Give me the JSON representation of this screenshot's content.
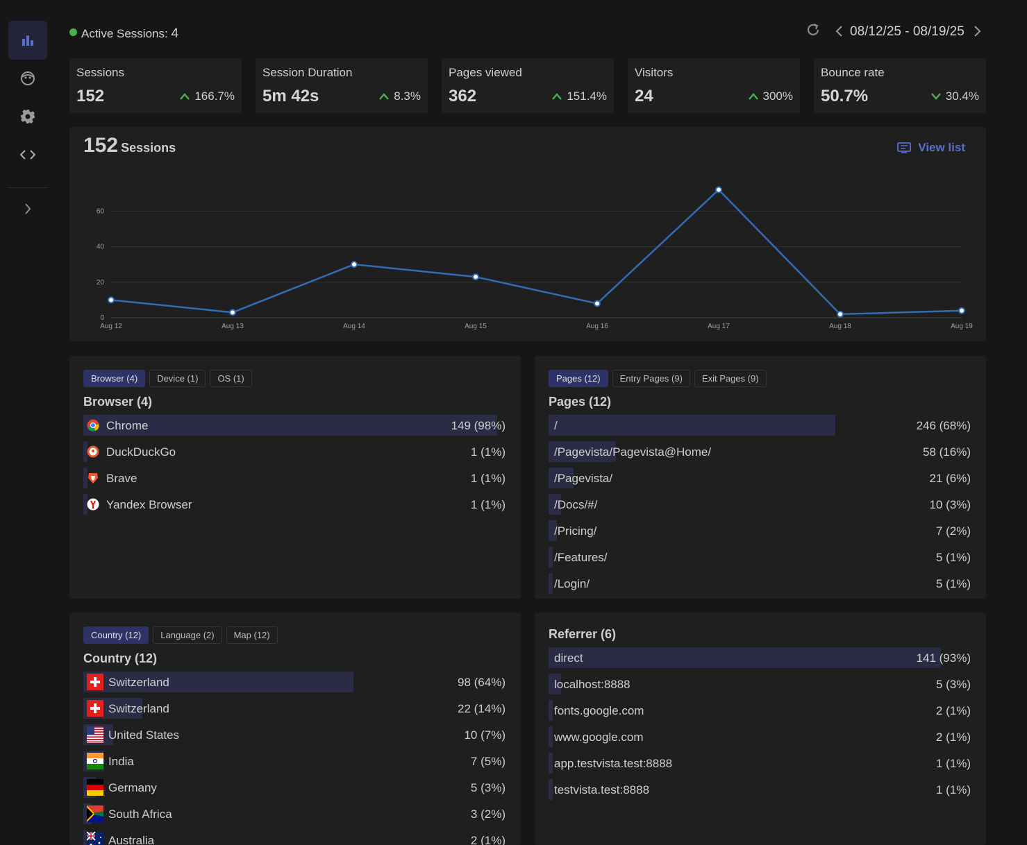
{
  "active_sessions": {
    "label": "Active Sessions:",
    "count": "4"
  },
  "date_range": "08/12/25 - 08/19/25",
  "stats": [
    {
      "title": "Sessions",
      "value": "152",
      "change": "166.7%",
      "trend": "up"
    },
    {
      "title": "Session Duration",
      "value": "5m 42s",
      "change": "8.3%",
      "trend": "up"
    },
    {
      "title": "Pages viewed",
      "value": "362",
      "change": "151.4%",
      "trend": "up"
    },
    {
      "title": "Visitors",
      "value": "24",
      "change": "300%",
      "trend": "up"
    },
    {
      "title": "Bounce rate",
      "value": "50.7%",
      "change": "30.4%",
      "trend": "down"
    }
  ],
  "chart": {
    "count": "152",
    "count_label": "Sessions",
    "view_list_label": "View list"
  },
  "chart_data": {
    "type": "line",
    "categories": [
      "Aug 12",
      "Aug 13",
      "Aug 14",
      "Aug 15",
      "Aug 16",
      "Aug 17",
      "Aug 18",
      "Aug 19"
    ],
    "series": [
      {
        "values": [
          10,
          3,
          30,
          23,
          8,
          72,
          2,
          4
        ]
      }
    ],
    "yticks": [
      "0",
      "20",
      "40",
      "60"
    ],
    "ylim": [
      0,
      80
    ],
    "grid": true,
    "color": "#2f6db5"
  },
  "browser_panel": {
    "tabs": [
      "Browser (4)",
      "Device (1)",
      "OS (1)"
    ],
    "title": "Browser (4)",
    "rows": [
      {
        "label": "Chrome",
        "value": "149 (98%)",
        "share": 0.98,
        "icon": "chrome-icon"
      },
      {
        "label": "DuckDuckGo",
        "value": "1 (1%)",
        "share": 0.01,
        "icon": "duckduckgo-icon"
      },
      {
        "label": "Brave",
        "value": "1 (1%)",
        "share": 0.01,
        "icon": "brave-icon"
      },
      {
        "label": "Yandex Browser",
        "value": "1 (1%)",
        "share": 0.01,
        "icon": "yandex-icon"
      }
    ]
  },
  "pages_panel": {
    "tabs": [
      "Pages (12)",
      "Entry Pages (9)",
      "Exit Pages (9)"
    ],
    "title": "Pages (12)",
    "rows": [
      {
        "label": "/",
        "value": "246 (68%)",
        "share": 0.68
      },
      {
        "label": "/Pagevista/Pagevista@Home/",
        "value": "58 (16%)",
        "share": 0.16
      },
      {
        "label": "/Pagevista/",
        "value": "21 (6%)",
        "share": 0.06
      },
      {
        "label": "/Docs/#/",
        "value": "10 (3%)",
        "share": 0.03
      },
      {
        "label": "/Pricing/",
        "value": "7 (2%)",
        "share": 0.02
      },
      {
        "label": "/Features/",
        "value": "5 (1%)",
        "share": 0.01
      },
      {
        "label": "/Login/",
        "value": "5 (1%)",
        "share": 0.01
      }
    ]
  },
  "country_panel": {
    "tabs": [
      "Country (12)",
      "Language (2)",
      "Map (12)"
    ],
    "title": "Country (12)",
    "rows": [
      {
        "label": "Switzerland",
        "value": "98 (64%)",
        "share": 0.64,
        "flag": "swiss-flag-icon"
      },
      {
        "label": "Switzerland",
        "value": "22 (14%)",
        "share": 0.14,
        "flag": "swiss-flag-icon"
      },
      {
        "label": "United States",
        "value": "10 (7%)",
        "share": 0.07,
        "flag": "us-flag-icon"
      },
      {
        "label": "India",
        "value": "7 (5%)",
        "share": 0.05,
        "flag": "india-flag-icon"
      },
      {
        "label": "Germany",
        "value": "5 (3%)",
        "share": 0.03,
        "flag": "germany-flag-icon"
      },
      {
        "label": "South Africa",
        "value": "3 (2%)",
        "share": 0.02,
        "flag": "south-africa-flag-icon"
      },
      {
        "label": "Australia",
        "value": "2 (1%)",
        "share": 0.01,
        "flag": "australia-flag-icon"
      }
    ]
  },
  "referrer_panel": {
    "title": "Referrer (6)",
    "rows": [
      {
        "label": "direct",
        "value": "141 (93%)",
        "share": 0.93
      },
      {
        "label": "localhost:8888",
        "value": "5 (3%)",
        "share": 0.03
      },
      {
        "label": "fonts.google.com",
        "value": "2 (1%)",
        "share": 0.01
      },
      {
        "label": "www.google.com",
        "value": "2 (1%)",
        "share": 0.01
      },
      {
        "label": "app.testvista.test:8888",
        "value": "1 (1%)",
        "share": 0.01
      },
      {
        "label": "testvista.test:8888",
        "value": "1 (1%)",
        "share": 0.01
      }
    ]
  }
}
